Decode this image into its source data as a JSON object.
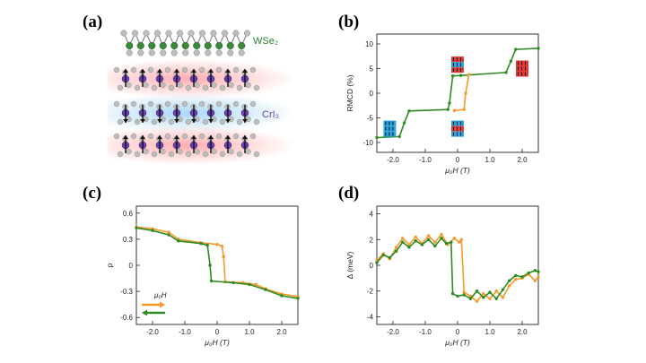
{
  "panels": {
    "a": "(a)",
    "b": "(b)",
    "c": "(c)",
    "d": "(d)"
  },
  "schematic": {
    "top_label": "WSe₂",
    "mid_label": "CrI₃",
    "colors": {
      "se": "#3a8a3a",
      "cr": "#6a3fb0",
      "i": "#bdbdbd",
      "red_glow": "#ff6b6b",
      "blue_glow": "#63b7ea",
      "wse2_text": "#2e7d32",
      "cri3_text": "#6a3fb0"
    }
  },
  "colors": {
    "green": "#2e8b22",
    "orange": "#f39a2b",
    "red_box": "#e53935",
    "blue_box": "#29a3dd"
  },
  "chart_data": [
    {
      "id": "b",
      "type": "line",
      "xlabel": "μ₀H (T)",
      "ylabel": "RMCD (%)",
      "xlim": [
        -2.5,
        2.5
      ],
      "ylim": [
        -12,
        12
      ],
      "xticks": [
        -2.0,
        -1.0,
        0.0,
        1.0,
        2.0
      ],
      "xtick_labels": [
        "-2.0",
        "-1.0",
        "0",
        "1.0",
        "2.0"
      ],
      "yticks": [
        -10,
        -5,
        0,
        5,
        10
      ],
      "ytick_labels": [
        "-10",
        "-5",
        "0",
        "5",
        "10"
      ],
      "series": [
        {
          "color": "green",
          "x": [
            -2.5,
            -1.8,
            -1.65,
            -1.5,
            -0.3,
            -0.25,
            -0.15,
            0.1,
            1.5,
            1.65,
            1.8,
            2.5
          ],
          "y": [
            -9,
            -8.8,
            -6,
            -3.6,
            -3.3,
            -2,
            3.5,
            3.6,
            4.2,
            6.5,
            8.9,
            9.1
          ]
        },
        {
          "color": "orange",
          "x": [
            -0.1,
            0.2,
            0.25,
            0.35
          ],
          "y": [
            -3.5,
            -3.3,
            0,
            3.8
          ]
        }
      ],
      "insets": [
        {
          "x": -2.1,
          "y": -7.2,
          "fills": [
            "blue",
            "blue",
            "blue"
          ]
        },
        {
          "x": 0.0,
          "y": 5.8,
          "fills": [
            "red",
            "blue",
            "red"
          ]
        },
        {
          "x": 0.0,
          "y": -7.2,
          "fills": [
            "blue",
            "red",
            "blue"
          ]
        },
        {
          "x": 2.0,
          "y": 5.0,
          "fills": [
            "red",
            "red",
            "red"
          ]
        }
      ]
    },
    {
      "id": "c",
      "type": "line",
      "xlabel": "μ₀H (T)",
      "ylabel": "ρ",
      "xlim": [
        -2.5,
        2.5
      ],
      "ylim": [
        -0.68,
        0.68
      ],
      "xticks": [
        -2.0,
        -1.0,
        0.0,
        1.0,
        2.0
      ],
      "xtick_labels": [
        "-2.0",
        "-1.0",
        "0",
        "1.0",
        "2.0"
      ],
      "yticks": [
        -0.6,
        -0.3,
        0,
        0.3,
        0.6
      ],
      "ytick_labels": [
        "-0.6",
        "-0.3",
        "0",
        "0.3",
        "0.6"
      ],
      "series": [
        {
          "color": "orange",
          "x": [
            -2.5,
            -2.0,
            -1.5,
            -1.2,
            -0.5,
            0.0,
            0.15,
            0.2,
            0.25,
            0.8,
            1.2,
            1.5,
            2.0,
            2.5
          ],
          "y": [
            0.44,
            0.42,
            0.38,
            0.3,
            0.26,
            0.24,
            0.22,
            0.1,
            -0.19,
            -0.2,
            -0.22,
            -0.27,
            -0.33,
            -0.36
          ]
        },
        {
          "color": "green",
          "x": [
            -2.5,
            -2.0,
            -1.5,
            -1.2,
            -0.5,
            -0.3,
            -0.22,
            -0.18,
            0.5,
            1.0,
            1.5,
            2.0,
            2.5
          ],
          "y": [
            0.43,
            0.4,
            0.35,
            0.28,
            0.25,
            0.23,
            0.0,
            -0.18,
            -0.2,
            -0.22,
            -0.28,
            -0.35,
            -0.38
          ]
        }
      ],
      "legend": {
        "label": "μ₀H"
      }
    },
    {
      "id": "d",
      "type": "line",
      "xlabel": "μ₀H (T)",
      "ylabel": "Δ (meV)",
      "xlim": [
        -2.5,
        2.5
      ],
      "ylim": [
        -4.6,
        4.6
      ],
      "xticks": [
        -2.0,
        -1.0,
        0.0,
        1.0,
        2.0
      ],
      "xtick_labels": [
        "-2.0",
        "-1.0",
        "0",
        "1.0",
        "2.0"
      ],
      "yticks": [
        -4,
        -2,
        0,
        2,
        4
      ],
      "ytick_labels": [
        "-4",
        "-2",
        "0",
        "2",
        "4"
      ],
      "series": [
        {
          "color": "orange",
          "x": [
            -2.5,
            -2.3,
            -2.1,
            -1.9,
            -1.7,
            -1.5,
            -1.3,
            -1.1,
            -0.9,
            -0.7,
            -0.5,
            -0.3,
            -0.1,
            0.05,
            0.12,
            0.2,
            0.4,
            0.6,
            0.8,
            1.0,
            1.2,
            1.4,
            1.6,
            1.8,
            2.0,
            2.2,
            2.4,
            2.5
          ],
          "y": [
            0.4,
            0.9,
            0.5,
            1.4,
            2.1,
            1.6,
            2.2,
            1.7,
            2.3,
            1.8,
            2.4,
            1.6,
            2.1,
            1.8,
            2.0,
            -2.1,
            -2.4,
            -2.8,
            -2.2,
            -2.6,
            -2.0,
            -2.5,
            -1.6,
            -1.1,
            -1.0,
            -0.7,
            -1.2,
            -0.9
          ]
        },
        {
          "color": "green",
          "x": [
            -2.5,
            -2.3,
            -2.1,
            -1.9,
            -1.7,
            -1.5,
            -1.3,
            -1.1,
            -0.9,
            -0.7,
            -0.5,
            -0.35,
            -0.2,
            -0.15,
            0.0,
            0.2,
            0.4,
            0.6,
            0.8,
            1.0,
            1.2,
            1.4,
            1.6,
            1.8,
            2.0,
            2.2,
            2.4,
            2.5
          ],
          "y": [
            0.2,
            0.8,
            0.6,
            1.1,
            1.8,
            1.4,
            1.9,
            1.6,
            2.0,
            1.5,
            2.1,
            1.7,
            1.8,
            -2.2,
            -2.4,
            -2.3,
            -2.6,
            -2.0,
            -2.5,
            -2.1,
            -2.6,
            -1.9,
            -1.2,
            -0.8,
            -0.9,
            -0.6,
            -0.4,
            -0.5
          ]
        }
      ]
    }
  ]
}
